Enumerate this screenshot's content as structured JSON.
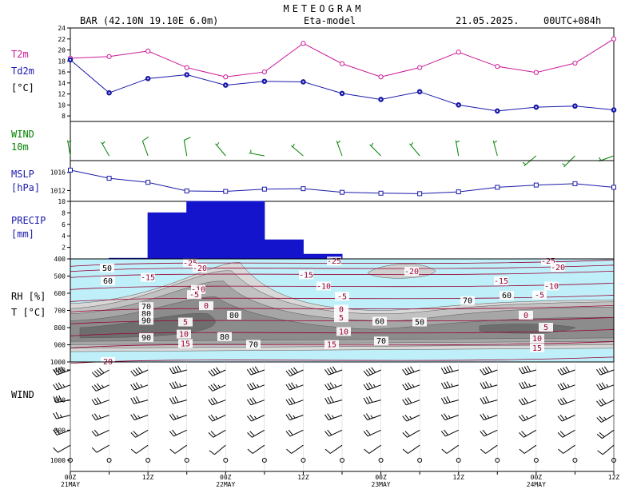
{
  "header": {
    "title": "METEOGRAM",
    "station": "BAR (42.10N 19.10E  6.0m)",
    "model": "Eta-model",
    "date": "21.05.2025.",
    "run": "00UTC+084h"
  },
  "colors": {
    "t2m": "#cc1a99",
    "td2m": "#1a1aaa",
    "wind10m": "#008000",
    "mslp": "#1a1aaa",
    "precip": "#1414cc",
    "temp_iso": "#990033",
    "rh_light": "#bfeff8"
  },
  "chart_data": [
    {
      "type": "line",
      "panel": "temperature",
      "labels": {
        "t2m": "T2m",
        "td2m": "Td2m",
        "unit": "[°C]"
      },
      "x": [
        "21MAY 00Z",
        "21MAY 06Z",
        "21MAY 12Z",
        "21MAY 18Z",
        "22MAY 00Z",
        "22MAY 06Z",
        "22MAY 12Z",
        "22MAY 18Z",
        "23MAY 00Z",
        "23MAY 06Z",
        "23MAY 12Z",
        "23MAY 18Z",
        "24MAY 00Z",
        "24MAY 06Z",
        "24MAY 12Z"
      ],
      "series": [
        {
          "name": "T2m",
          "values": [
            18.5,
            18.8,
            19.8,
            16.8,
            15.1,
            16.0,
            21.2,
            17.5,
            15.1,
            16.8,
            19.6,
            17.0,
            15.9,
            17.6,
            22.0
          ]
        },
        {
          "name": "Td2m",
          "values": [
            18.2,
            12.2,
            14.8,
            15.5,
            13.6,
            14.3,
            14.2,
            12.1,
            11.0,
            12.4,
            10.0,
            8.9,
            9.6,
            9.8,
            9.1
          ]
        }
      ],
      "yticks": [
        "8",
        "10",
        "12",
        "14",
        "16",
        "18",
        "20",
        "22",
        "24"
      ],
      "ylim": [
        7,
        24
      ]
    },
    {
      "type": "wind_barbs",
      "panel": "wind10m",
      "labels": {
        "name": "WIND",
        "level": "10m"
      },
      "x": [
        "21MAY 00Z",
        "21MAY 06Z",
        "21MAY 12Z",
        "21MAY 18Z",
        "22MAY 00Z",
        "22MAY 06Z",
        "22MAY 12Z",
        "22MAY 18Z",
        "23MAY 00Z",
        "23MAY 06Z",
        "23MAY 12Z",
        "23MAY 18Z",
        "24MAY 00Z",
        "24MAY 06Z",
        "24MAY 12Z"
      ],
      "direction_deg": [
        350,
        330,
        340,
        350,
        320,
        280,
        310,
        340,
        315,
        320,
        350,
        345,
        230,
        225,
        250
      ],
      "speed_kt": [
        5,
        5,
        10,
        10,
        5,
        5,
        5,
        5,
        5,
        5,
        5,
        5,
        5,
        5,
        5
      ]
    },
    {
      "type": "line",
      "panel": "mslp",
      "labels": {
        "name": "MSLP",
        "unit": "[hPa]"
      },
      "x": [
        "21MAY 00Z",
        "21MAY 06Z",
        "21MAY 12Z",
        "21MAY 18Z",
        "22MAY 00Z",
        "22MAY 06Z",
        "22MAY 12Z",
        "22MAY 18Z",
        "23MAY 00Z",
        "23MAY 06Z",
        "23MAY 12Z",
        "23MAY 18Z",
        "24MAY 00Z",
        "24MAY 06Z",
        "24MAY 12Z"
      ],
      "values": [
        1016.5,
        1014.7,
        1013.8,
        1011.9,
        1011.8,
        1012.3,
        1012.4,
        1011.6,
        1011.4,
        1011.3,
        1011.7,
        1012.7,
        1013.2,
        1013.5,
        1012.7
      ],
      "yticks": [
        "1012",
        "1016"
      ],
      "ylim": [
        1009.6,
        1018.6
      ]
    },
    {
      "type": "bar",
      "panel": "precip",
      "labels": {
        "name": "PRECIP",
        "unit": "[mm]"
      },
      "intervals": [
        "00-06Z 21MAY",
        "06-12Z 21MAY",
        "12-18Z 21MAY",
        "18-24Z 21MAY",
        "00-06Z 22MAY",
        "06-12Z 22MAY",
        "12-18Z 22MAY",
        "18-24Z 22MAY",
        "00-06Z 23MAY",
        "06-12Z 23MAY",
        "12-18Z 23MAY",
        "18-24Z 23MAY",
        "00-06Z 24MAY",
        "06-12Z 24MAY"
      ],
      "values": [
        0.0,
        0.1,
        8.0,
        10.0,
        10.0,
        3.3,
        0.8,
        0.0,
        0.0,
        0.0,
        0.0,
        0.0,
        0.0,
        0.0
      ],
      "yticks": [
        "2",
        "4",
        "6",
        "8",
        "10"
      ],
      "ylim": [
        0,
        10
      ]
    },
    {
      "type": "heatmap",
      "panel": "rh_temp_cross_section",
      "labels": {
        "rh": "RH [%]",
        "t": "T [°C]"
      },
      "yticks": [
        "400",
        "500",
        "600",
        "700",
        "800",
        "900",
        "1000"
      ],
      "ylim": [
        1000,
        400
      ],
      "rh_contours": [
        "50",
        "60",
        "70",
        "80",
        "90"
      ],
      "t_isotherms": [
        "-25",
        "-20",
        "-15",
        "-10",
        "-5",
        "0",
        "5",
        "10",
        "15",
        "20"
      ]
    },
    {
      "type": "wind_barbs",
      "panel": "wind_profile",
      "labels": {
        "name": "WIND"
      },
      "yticks": [
        "400",
        "600",
        "800",
        "1000"
      ],
      "levels_hpa": [
        400,
        500,
        600,
        700,
        800,
        900,
        1000
      ],
      "x": [
        "21MAY 00Z",
        "21MAY 06Z",
        "21MAY 12Z",
        "21MAY 18Z",
        "22MAY 00Z",
        "22MAY 06Z",
        "22MAY 12Z",
        "22MAY 18Z",
        "23MAY 00Z",
        "23MAY 06Z",
        "23MAY 12Z",
        "23MAY 18Z",
        "24MAY 00Z",
        "24MAY 06Z",
        "24MAY 12Z"
      ]
    }
  ],
  "time_axis": [
    {
      "hour": "00Z",
      "day": "21MAY"
    },
    {
      "hour": "12Z",
      "day": ""
    },
    {
      "hour": "00Z",
      "day": "22MAY"
    },
    {
      "hour": "12Z",
      "day": ""
    },
    {
      "hour": "00Z",
      "day": "23MAY"
    },
    {
      "hour": "12Z",
      "day": ""
    },
    {
      "hour": "00Z",
      "day": "24MAY"
    },
    {
      "hour": "12Z",
      "day": ""
    }
  ]
}
